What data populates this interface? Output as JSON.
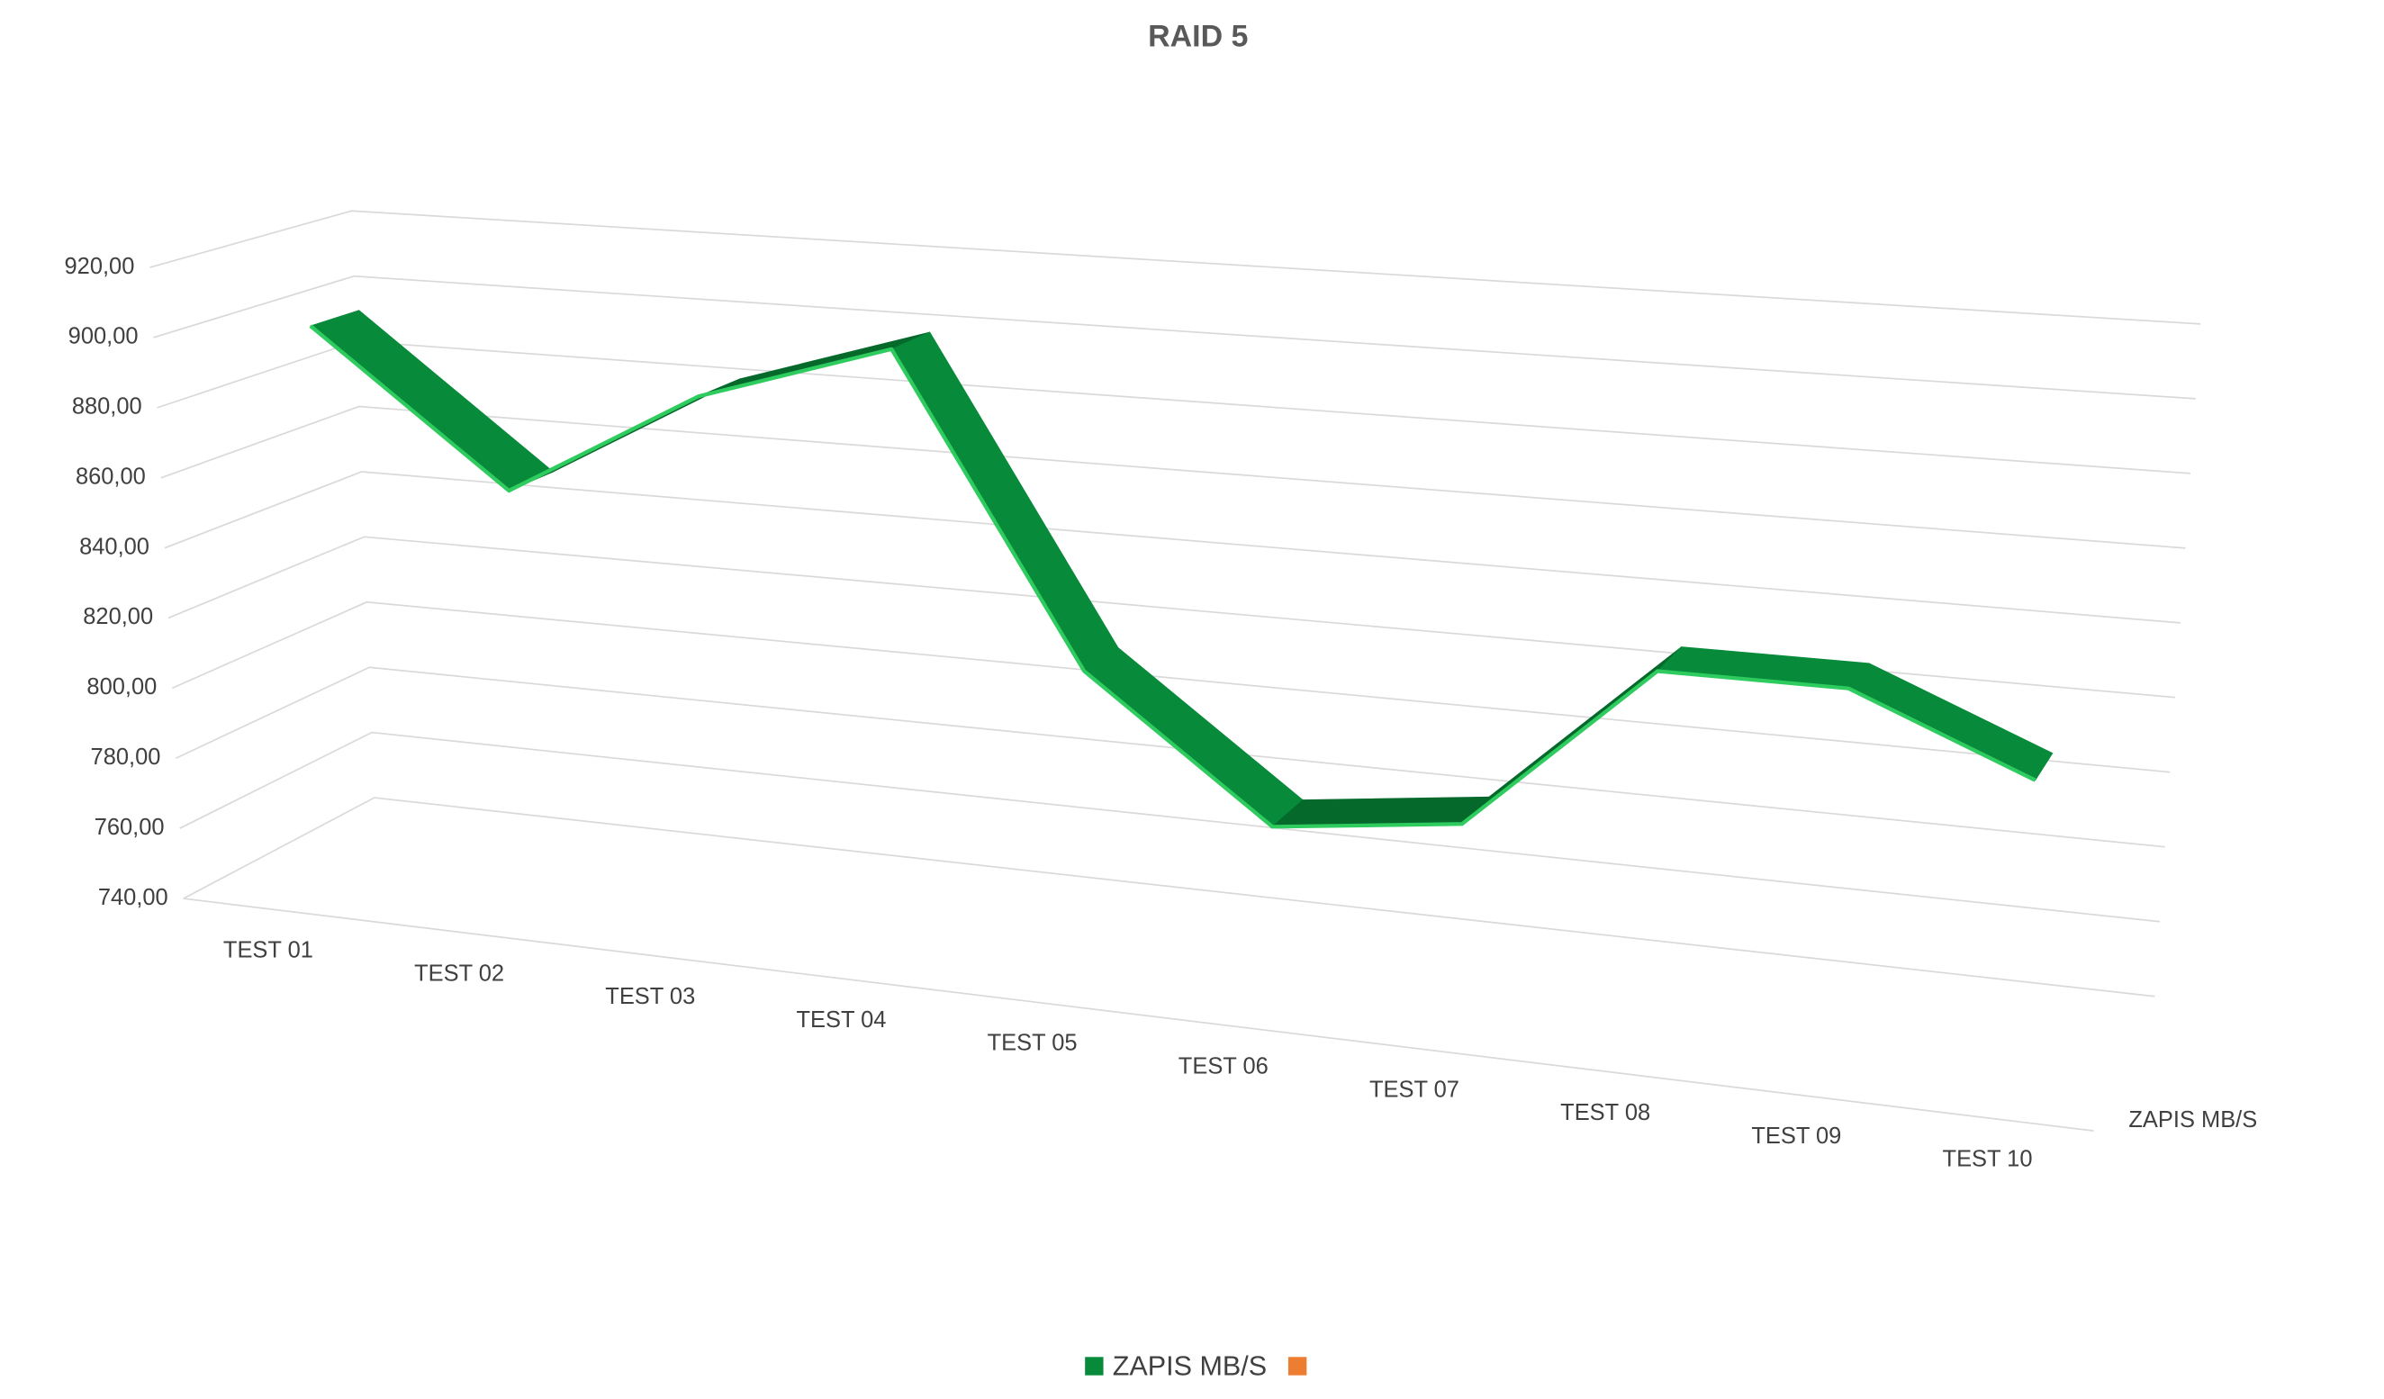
{
  "chart_data": {
    "type": "line3d",
    "title": "RAID 5",
    "categories": [
      "TEST 01",
      "TEST 02",
      "TEST 03",
      "TEST 04",
      "TEST 05",
      "TEST 06",
      "TEST 07",
      "TEST 08",
      "TEST 09",
      "TEST 10"
    ],
    "series": [
      {
        "name": "ZAPIS MB/S",
        "color": "#078a3a",
        "values": [
          900,
          857,
          888,
          905,
          821,
          784,
          790,
          835,
          835,
          816
        ]
      },
      {
        "name": null,
        "color": "#ed7d31",
        "values": [
          null,
          null,
          null,
          null,
          null,
          null,
          null,
          null,
          null,
          null
        ]
      }
    ],
    "ylim": [
      740,
      920
    ],
    "yticks": [
      {
        "value": 740,
        "label": "740,00"
      },
      {
        "value": 760,
        "label": "760,00"
      },
      {
        "value": 780,
        "label": "780,00"
      },
      {
        "value": 800,
        "label": "800,00"
      },
      {
        "value": 820,
        "label": "820,00"
      },
      {
        "value": 840,
        "label": "840,00"
      },
      {
        "value": 860,
        "label": "860,00"
      },
      {
        "value": 880,
        "label": "880,00"
      },
      {
        "value": 900,
        "label": "900,00"
      },
      {
        "value": 920,
        "label": "920,00"
      }
    ],
    "grid": true
  }
}
